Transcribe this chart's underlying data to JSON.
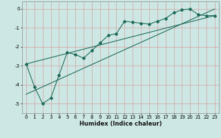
{
  "title": "",
  "xlabel": "Humidex (Indice chaleur)",
  "ylabel": "",
  "bg_color": "#cde8e4",
  "grid_color": "#afd4ce",
  "line_color": "#1e6b5a",
  "xlim": [
    -0.5,
    23.5
  ],
  "ylim": [
    -5.5,
    0.4
  ],
  "xticks": [
    0,
    1,
    2,
    3,
    4,
    5,
    6,
    7,
    8,
    9,
    10,
    11,
    12,
    13,
    14,
    15,
    16,
    17,
    18,
    19,
    20,
    21,
    22,
    23
  ],
  "yticks": [
    0,
    -1,
    -2,
    -3,
    -4,
    -5
  ],
  "data_x": [
    0,
    1,
    2,
    3,
    4,
    5,
    6,
    7,
    8,
    9,
    10,
    11,
    12,
    13,
    14,
    15,
    16,
    17,
    18,
    19,
    20,
    21,
    22,
    23
  ],
  "data_y": [
    -2.9,
    -4.1,
    -5.0,
    -4.7,
    -3.5,
    -2.3,
    -2.4,
    -2.6,
    -2.2,
    -1.8,
    -1.4,
    -1.3,
    -0.65,
    -0.7,
    -0.75,
    -0.8,
    -0.65,
    -0.5,
    -0.2,
    -0.05,
    0.0,
    -0.3,
    -0.35,
    -0.35
  ],
  "line1_x": [
    0,
    23
  ],
  "line1_y": [
    -2.9,
    -0.35
  ],
  "line2_x": [
    0,
    23
  ],
  "line2_y": [
    -4.5,
    0.0
  ],
  "tick_fontsize": 5,
  "xlabel_fontsize": 6,
  "marker_size": 2.0,
  "line_width": 0.8
}
